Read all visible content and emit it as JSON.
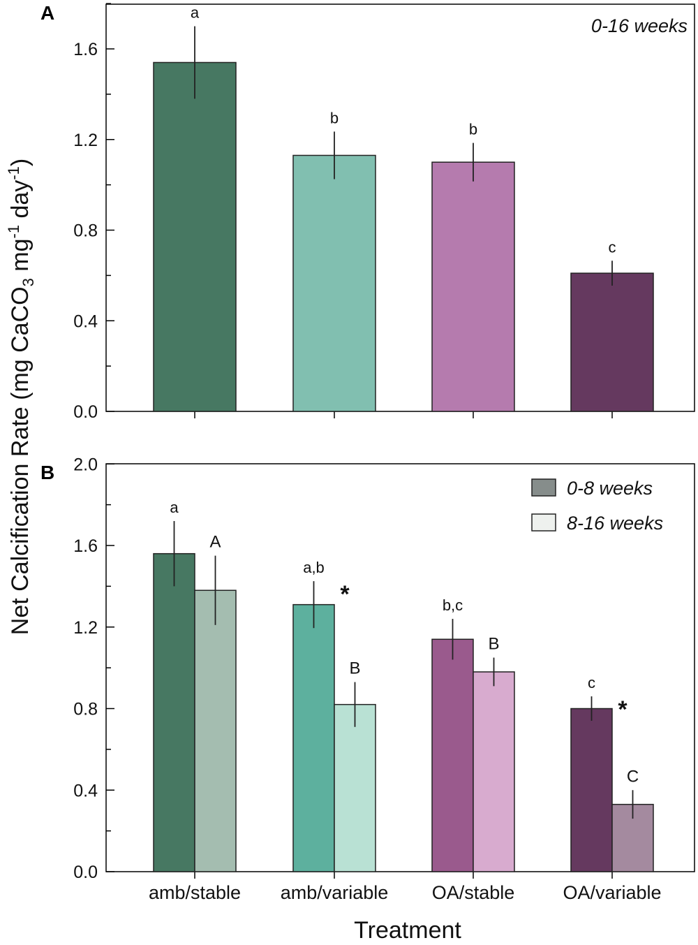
{
  "figure": {
    "ylabel_main": "Net Calcification Rate (mg CaCO",
    "ylabel_sub": "3",
    "ylabel_mid": " mg",
    "ylabel_sup1": "-1",
    "ylabel_end": " day",
    "ylabel_sup2": "-1",
    "ylabel_close": ")",
    "xlabel": "Treatment",
    "categories": [
      "amb/stable",
      "amb/variable",
      "OA/stable",
      "OA/variable"
    ]
  },
  "chart_data": [
    {
      "panel": "A",
      "type": "bar",
      "annotation": "0-16 weeks",
      "ylim": [
        0,
        1.8
      ],
      "yticks": [
        "0.0",
        "0.4",
        "0.8",
        "1.2",
        "1.6"
      ],
      "ytick_values": [
        0,
        0.4,
        0.8,
        1.2,
        1.6
      ],
      "categories": [
        "amb/stable",
        "amb/variable",
        "OA/stable",
        "OA/variable"
      ],
      "values": [
        1.54,
        1.13,
        1.1,
        0.61
      ],
      "errors": [
        0.16,
        0.105,
        0.085,
        0.055
      ],
      "letters": [
        "a",
        "b",
        "b",
        "c"
      ],
      "colors": [
        "#477862",
        "#81bfb0",
        "#b57bae",
        "#65395f"
      ]
    },
    {
      "panel": "B",
      "type": "bar",
      "ylim": [
        0,
        2.0
      ],
      "yticks": [
        "0.0",
        "0.4",
        "0.8",
        "1.2",
        "1.6",
        "2.0"
      ],
      "ytick_values": [
        0,
        0.4,
        0.8,
        1.2,
        1.6,
        2.0
      ],
      "categories": [
        "amb/stable",
        "amb/variable",
        "OA/stable",
        "OA/variable"
      ],
      "legend_position": "top-right",
      "series": [
        {
          "name": "0-8 weeks",
          "legend_color": "#868d8b",
          "values": [
            1.56,
            1.31,
            1.14,
            0.8
          ],
          "errors": [
            0.16,
            0.115,
            0.1,
            0.06
          ],
          "letters": [
            "a",
            "a,b",
            "b,c",
            "c"
          ],
          "colors": [
            "#477862",
            "#5db09e",
            "#9a5a8d",
            "#65395f"
          ]
        },
        {
          "name": "8-16 weeks",
          "legend_color": "#eef1ee",
          "values": [
            1.38,
            0.82,
            0.98,
            0.33
          ],
          "errors": [
            0.17,
            0.11,
            0.07,
            0.07
          ],
          "letters": [
            "A",
            "B",
            "B",
            "C"
          ],
          "colors": [
            "#a4bdb0",
            "#b9e1d4",
            "#d8abcf",
            "#a48a9f"
          ]
        }
      ],
      "significance_marks": [
        {
          "category": "amb/variable",
          "mark": "*"
        },
        {
          "category": "OA/variable",
          "mark": "*"
        }
      ]
    }
  ]
}
